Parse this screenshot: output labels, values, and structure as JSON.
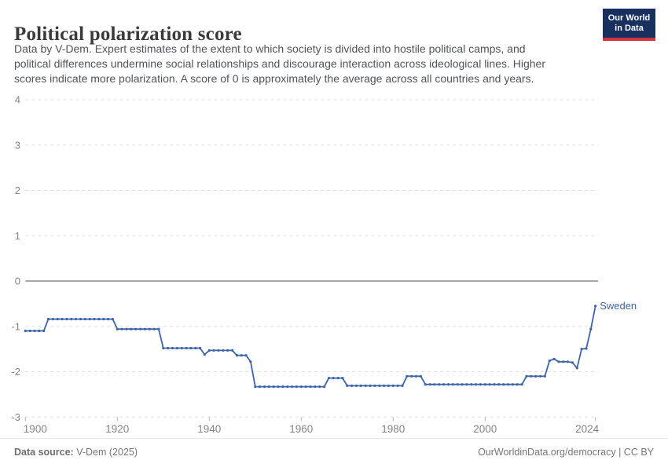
{
  "header": {
    "title": "Political polarization score",
    "subtitle_lines": [
      "Data by V-Dem. Expert estimates of the extent to which society is divided into hostile political camps, and",
      "political differences undermine social relationships and discourage interaction across ideological lines. Higher",
      "scores indicate more polarization. A score of 0 is approximately the average across all countries and years."
    ],
    "logo": {
      "line1": "Our World",
      "line2": "in Data"
    }
  },
  "footer": {
    "source_label": "Data source:",
    "source_value": " V-Dem (2025)",
    "credit": "OurWorldinData.org/democracy | CC BY"
  },
  "colors": {
    "series": "#3e64a8",
    "grid": "#e0e0e0",
    "zero_line": "#9c9c9c",
    "tick": "#b3b3b3",
    "axis_text": "#848484",
    "logo_bg": "#18305f",
    "logo_stripe": "#d0333e"
  },
  "chart_data": {
    "type": "line",
    "title": "Political polarization score",
    "xlabel": "",
    "ylabel": "",
    "ylim": [
      -3,
      4
    ],
    "xlim": [
      1900,
      2024
    ],
    "yticks": [
      4,
      3,
      2,
      1,
      0,
      -1,
      -2,
      -3
    ],
    "xticks": [
      1900,
      1920,
      1940,
      1960,
      1980,
      2000,
      2024
    ],
    "grid": "horizontal-dashed",
    "legend": "line-end-label",
    "series": [
      {
        "name": "Sweden",
        "points": [
          [
            1900,
            -1.1
          ],
          [
            1901,
            -1.1
          ],
          [
            1902,
            -1.1
          ],
          [
            1903,
            -1.1
          ],
          [
            1904,
            -1.1
          ],
          [
            1905,
            -0.84
          ],
          [
            1906,
            -0.84
          ],
          [
            1907,
            -0.84
          ],
          [
            1908,
            -0.84
          ],
          [
            1909,
            -0.84
          ],
          [
            1910,
            -0.84
          ],
          [
            1911,
            -0.84
          ],
          [
            1912,
            -0.84
          ],
          [
            1913,
            -0.84
          ],
          [
            1914,
            -0.84
          ],
          [
            1915,
            -0.84
          ],
          [
            1916,
            -0.84
          ],
          [
            1917,
            -0.84
          ],
          [
            1918,
            -0.84
          ],
          [
            1919,
            -0.84
          ],
          [
            1920,
            -1.06
          ],
          [
            1921,
            -1.06
          ],
          [
            1922,
            -1.06
          ],
          [
            1923,
            -1.06
          ],
          [
            1924,
            -1.06
          ],
          [
            1925,
            -1.06
          ],
          [
            1926,
            -1.06
          ],
          [
            1927,
            -1.06
          ],
          [
            1928,
            -1.06
          ],
          [
            1929,
            -1.06
          ],
          [
            1930,
            -1.48
          ],
          [
            1931,
            -1.48
          ],
          [
            1932,
            -1.48
          ],
          [
            1933,
            -1.48
          ],
          [
            1934,
            -1.48
          ],
          [
            1935,
            -1.48
          ],
          [
            1936,
            -1.48
          ],
          [
            1937,
            -1.48
          ],
          [
            1938,
            -1.48
          ],
          [
            1939,
            -1.62
          ],
          [
            1940,
            -1.53
          ],
          [
            1941,
            -1.53
          ],
          [
            1942,
            -1.53
          ],
          [
            1943,
            -1.53
          ],
          [
            1944,
            -1.53
          ],
          [
            1945,
            -1.53
          ],
          [
            1946,
            -1.64
          ],
          [
            1947,
            -1.64
          ],
          [
            1948,
            -1.64
          ],
          [
            1949,
            -1.78
          ],
          [
            1950,
            -2.33
          ],
          [
            1951,
            -2.33
          ],
          [
            1952,
            -2.33
          ],
          [
            1953,
            -2.33
          ],
          [
            1954,
            -2.33
          ],
          [
            1955,
            -2.33
          ],
          [
            1956,
            -2.33
          ],
          [
            1957,
            -2.33
          ],
          [
            1958,
            -2.33
          ],
          [
            1959,
            -2.33
          ],
          [
            1960,
            -2.33
          ],
          [
            1961,
            -2.33
          ],
          [
            1962,
            -2.33
          ],
          [
            1963,
            -2.33
          ],
          [
            1964,
            -2.33
          ],
          [
            1965,
            -2.33
          ],
          [
            1966,
            -2.14
          ],
          [
            1967,
            -2.14
          ],
          [
            1968,
            -2.14
          ],
          [
            1969,
            -2.14
          ],
          [
            1970,
            -2.31
          ],
          [
            1971,
            -2.31
          ],
          [
            1972,
            -2.31
          ],
          [
            1973,
            -2.31
          ],
          [
            1974,
            -2.31
          ],
          [
            1975,
            -2.31
          ],
          [
            1976,
            -2.31
          ],
          [
            1977,
            -2.31
          ],
          [
            1978,
            -2.31
          ],
          [
            1979,
            -2.31
          ],
          [
            1980,
            -2.31
          ],
          [
            1981,
            -2.31
          ],
          [
            1982,
            -2.31
          ],
          [
            1983,
            -2.1
          ],
          [
            1984,
            -2.1
          ],
          [
            1985,
            -2.1
          ],
          [
            1986,
            -2.1
          ],
          [
            1987,
            -2.28
          ],
          [
            1988,
            -2.28
          ],
          [
            1989,
            -2.28
          ],
          [
            1990,
            -2.28
          ],
          [
            1991,
            -2.28
          ],
          [
            1992,
            -2.28
          ],
          [
            1993,
            -2.28
          ],
          [
            1994,
            -2.28
          ],
          [
            1995,
            -2.28
          ],
          [
            1996,
            -2.28
          ],
          [
            1997,
            -2.28
          ],
          [
            1998,
            -2.28
          ],
          [
            1999,
            -2.28
          ],
          [
            2000,
            -2.28
          ],
          [
            2001,
            -2.28
          ],
          [
            2002,
            -2.28
          ],
          [
            2003,
            -2.28
          ],
          [
            2004,
            -2.28
          ],
          [
            2005,
            -2.28
          ],
          [
            2006,
            -2.28
          ],
          [
            2007,
            -2.28
          ],
          [
            2008,
            -2.28
          ],
          [
            2009,
            -2.1
          ],
          [
            2010,
            -2.1
          ],
          [
            2011,
            -2.1
          ],
          [
            2012,
            -2.1
          ],
          [
            2013,
            -2.1
          ],
          [
            2014,
            -1.76
          ],
          [
            2015,
            -1.72
          ],
          [
            2016,
            -1.78
          ],
          [
            2017,
            -1.78
          ],
          [
            2018,
            -1.78
          ],
          [
            2019,
            -1.8
          ],
          [
            2020,
            -1.92
          ],
          [
            2021,
            -1.5
          ],
          [
            2022,
            -1.49
          ],
          [
            2023,
            -1.06
          ],
          [
            2024,
            -0.55
          ]
        ]
      }
    ]
  }
}
